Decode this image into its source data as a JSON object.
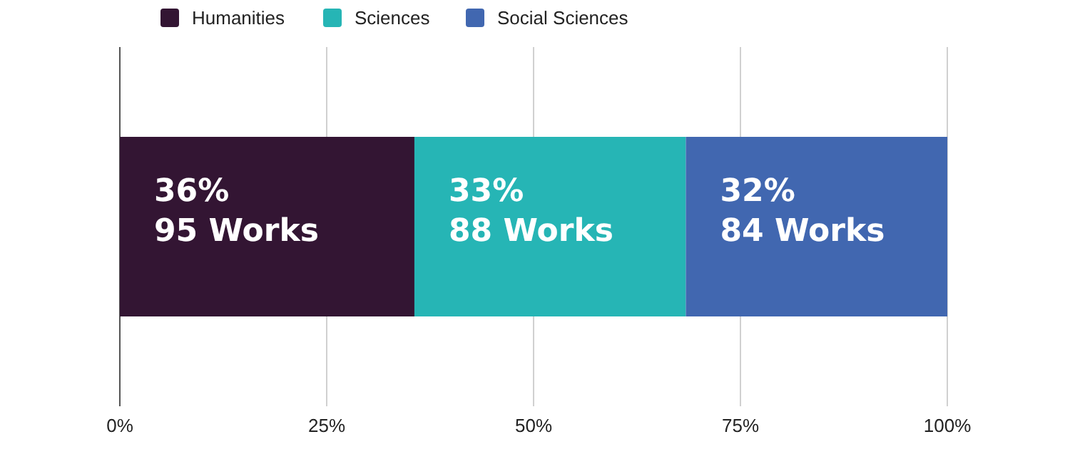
{
  "chart_data": {
    "type": "bar",
    "orientation": "horizontal",
    "stacked": true,
    "categories": [
      null
    ],
    "series": [
      {
        "name": "Humanities",
        "color": "#331533",
        "values": [
          35.6
        ],
        "value_labels": [
          "36%\n95 Works"
        ]
      },
      {
        "name": "Sciences",
        "color": "#26b5b5",
        "values": [
          32.8
        ],
        "value_labels": [
          "33%\n88 Works"
        ]
      },
      {
        "name": "Social Sciences",
        "color": "#4167b0",
        "values": [
          31.6
        ],
        "value_labels": [
          "32%\n84 Works"
        ]
      }
    ],
    "xlim": [
      0,
      100
    ],
    "xticks": [
      {
        "value": 0,
        "label": "0%"
      },
      {
        "value": 25,
        "label": "25%"
      },
      {
        "value": 50,
        "label": "50%"
      },
      {
        "value": 75,
        "label": "75%"
      },
      {
        "value": 100,
        "label": "100%"
      }
    ],
    "grid": "x",
    "legend": "top"
  }
}
